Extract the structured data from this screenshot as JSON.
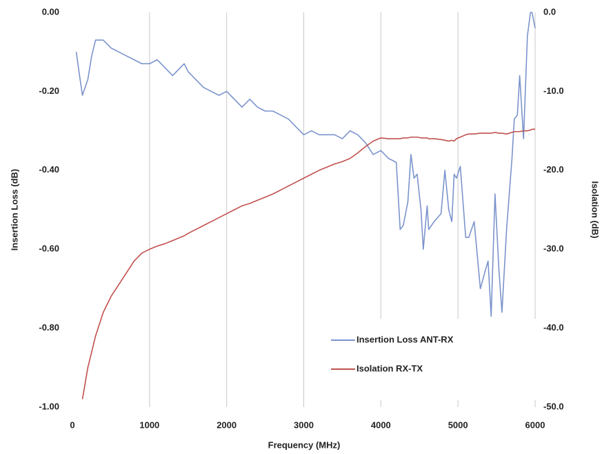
{
  "chart_data": {
    "type": "line",
    "xlabel": "Frequency (MHz)",
    "ylabel": "Insertion Loss (dB)",
    "y2label": "Isolation (dB)",
    "x": [
      50,
      100,
      130,
      200,
      250,
      300,
      400,
      500,
      600,
      700,
      800,
      900,
      1000,
      1100,
      1200,
      1300,
      1400,
      1450,
      1500,
      1600,
      1700,
      1800,
      1900,
      2000,
      2100,
      2200,
      2300,
      2400,
      2500,
      2600,
      2700,
      2800,
      2900,
      3000,
      3100,
      3200,
      3300,
      3400,
      3500,
      3600,
      3700,
      3800,
      3900,
      4000,
      4100,
      4200,
      4250,
      4290,
      4350,
      4390,
      4430,
      4470,
      4520,
      4550,
      4600,
      4620,
      4690,
      4780,
      4830,
      4880,
      4920,
      4950,
      4980,
      5030,
      5100,
      5140,
      5210,
      5290,
      5360,
      5390,
      5430,
      5480,
      5530,
      5570,
      5630,
      5700,
      5730,
      5770,
      5800,
      5850,
      5900,
      5940,
      5960,
      6000
    ],
    "series": [
      {
        "name": "Insertion Loss ANT-RX",
        "color": "#7b93cc",
        "axis": "y",
        "values": [
          -0.1,
          -0.17,
          -0.21,
          -0.17,
          -0.11,
          -0.07,
          -0.07,
          -0.09,
          -0.1,
          -0.11,
          -0.12,
          -0.13,
          -0.13,
          -0.12,
          -0.14,
          -0.16,
          -0.14,
          -0.13,
          -0.15,
          -0.17,
          -0.19,
          -0.2,
          -0.21,
          -0.2,
          -0.22,
          -0.24,
          -0.22,
          -0.24,
          -0.25,
          -0.25,
          -0.26,
          -0.27,
          -0.29,
          -0.31,
          -0.3,
          -0.31,
          -0.31,
          -0.31,
          -0.32,
          -0.3,
          -0.31,
          -0.33,
          -0.36,
          -0.35,
          -0.37,
          -0.38,
          -0.55,
          -0.54,
          -0.48,
          -0.36,
          -0.42,
          -0.41,
          -0.5,
          -0.6,
          -0.49,
          -0.55,
          -0.53,
          -0.51,
          -0.4,
          -0.5,
          -0.53,
          -0.41,
          -0.42,
          -0.39,
          -0.57,
          -0.57,
          -0.53,
          -0.7,
          -0.65,
          -0.63,
          -0.77,
          -0.46,
          -0.65,
          -0.76,
          -0.55,
          -0.37,
          -0.27,
          -0.26,
          -0.16,
          -0.32,
          -0.06,
          0.0,
          0.0,
          -0.04
        ]
      },
      {
        "name": "Isolation RX-TX",
        "color": "#c0504d",
        "axis": "y2",
        "values": [
          null,
          null,
          -49,
          -45,
          -43,
          -41,
          -38,
          -36,
          -34.5,
          -33,
          -31.5,
          -30.5,
          -30,
          -29.6,
          -29.3,
          -28.9,
          -28.5,
          -28.3,
          -28,
          -27.5,
          -27,
          -26.5,
          -26,
          -25.5,
          -25,
          -24.5,
          -24.2,
          -23.8,
          -23.4,
          -23,
          -22.5,
          -22,
          -21.5,
          -21,
          -20.5,
          -20,
          -19.6,
          -19.2,
          -18.9,
          -18.5,
          -17.8,
          -17,
          -16.3,
          -15.9,
          -16,
          -16,
          -16,
          -15.9,
          -15.9,
          -15.8,
          -15.8,
          -15.8,
          -15.9,
          -15.9,
          -15.9,
          -16,
          -16,
          -16.1,
          -16.2,
          -16.3,
          -16.2,
          -16.3,
          -16,
          -15.8,
          -15.5,
          -15.4,
          -15.4,
          -15.3,
          -15.3,
          -15.3,
          -15.3,
          -15.2,
          -15.3,
          -15.3,
          -15.4,
          -15.2,
          -15.1,
          -15.1,
          -15.1,
          -15,
          -15,
          -14.9,
          -14.8,
          -14.8
        ]
      }
    ],
    "xlim": [
      0,
      6000
    ],
    "xticks": [
      0,
      1000,
      2000,
      3000,
      4000,
      5000,
      6000
    ],
    "ylim": [
      -1,
      0
    ],
    "yticks": [
      {
        "value": -1,
        "label": "-1.00"
      },
      {
        "value": -0.8,
        "label": "-0.80"
      },
      {
        "value": -0.6,
        "label": "-0.60"
      },
      {
        "value": -0.4,
        "label": "-0.40"
      },
      {
        "value": -0.2,
        "label": "-0.20"
      },
      {
        "value": 0,
        "label": "0.00"
      }
    ],
    "y2lim": [
      -50,
      0
    ],
    "y2ticks": [
      {
        "value": -50,
        "label": "-50.0"
      },
      {
        "value": -40,
        "label": "-40.0"
      },
      {
        "value": -30,
        "label": "-30.0"
      },
      {
        "value": -20,
        "label": "-20.0"
      },
      {
        "value": -10,
        "label": "-10.0"
      },
      {
        "value": 0,
        "label": "0.0"
      }
    ],
    "grid": "x",
    "legend": "lower right"
  }
}
